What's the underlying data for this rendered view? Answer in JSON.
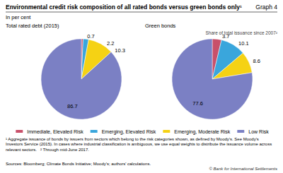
{
  "title": "Environmental credit risk composition of all rated bonds versus green bonds only¹",
  "graph_label": "Graph 4",
  "subtitle": "In per cent",
  "chart_data": [
    {
      "type": "pie",
      "title": "Total rated debt (2015)",
      "categories": [
        "Immediate, Elevated Risk",
        "Emerging, Elevated Risk",
        "Emerging, Moderate Risk",
        "Low Risk"
      ],
      "values": [
        0.7,
        2.2,
        10.3,
        86.7
      ],
      "colors": [
        "#c8506a",
        "#3aa6dc",
        "#f5d214",
        "#7b80c4"
      ],
      "data_labels": true,
      "legend": "bottom"
    },
    {
      "type": "pie",
      "title": "Green bonds",
      "annotation": "Share of total issuance since 2007²",
      "categories": [
        "Immediate, Elevated Risk",
        "Emerging, Elevated Risk",
        "Emerging, Moderate Risk",
        "Low Risk"
      ],
      "values": [
        3.7,
        10.1,
        8.6,
        77.6
      ],
      "colors": [
        "#c8506a",
        "#3aa6dc",
        "#f5d214",
        "#7b80c4"
      ],
      "data_labels": true,
      "legend": "bottom"
    }
  ],
  "footnotes": [
    "¹ Aggregate issuance of bonds by issuers from sectors which belong to the risk categories shown, as defined by Moody's. See Moody's Investors Service (2015). In cases where industrial classification is ambiguous, we use equal weights to distribute the issuance volume across relevant sectors.   ² Through mid-June 2017."
  ],
  "sources": "Sources: Bloomberg; Climate Bonds Initiative; Moody's; authors' calculations.",
  "copyright": "© Bank for International Settlements"
}
